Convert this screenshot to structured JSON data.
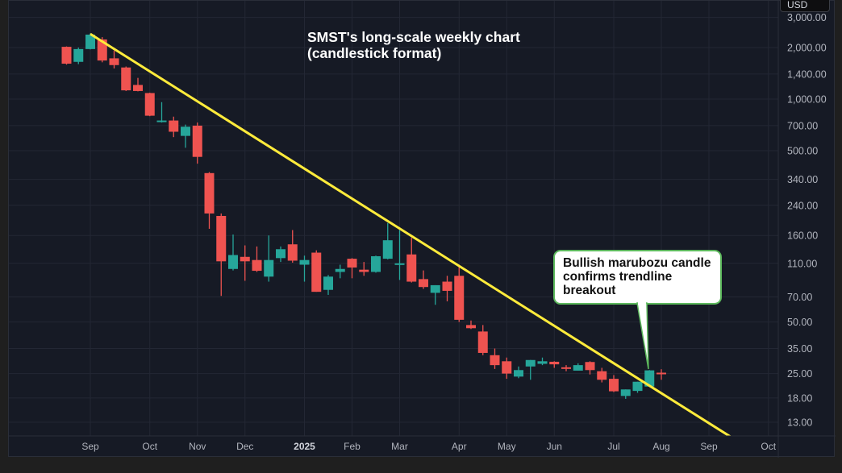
{
  "chart_data": {
    "type": "candlestick",
    "title": "SMST's long-scale weekly chart (candlestick format)",
    "currency": "USD",
    "y_scale": "log",
    "ylim": [
      11,
      2900
    ],
    "y_ticks": [
      "3,000.00",
      "2,000.00",
      "1,400.00",
      "1,000.00",
      "700.00",
      "500.00",
      "340.00",
      "240.00",
      "160.00",
      "110.00",
      "70.00",
      "50.00",
      "35.00",
      "25.00",
      "18.00",
      "13.00"
    ],
    "y_tick_values": [
      3000,
      2000,
      1400,
      1000,
      700,
      500,
      340,
      240,
      160,
      110,
      70,
      50,
      35,
      25,
      18,
      13
    ],
    "x_ticks": [
      {
        "label": "Sep",
        "week": 2
      },
      {
        "label": "Oct",
        "week": 7
      },
      {
        "label": "Nov",
        "week": 11
      },
      {
        "label": "Dec",
        "week": 15
      },
      {
        "label": "2025",
        "week": 20,
        "bold": true
      },
      {
        "label": "Feb",
        "week": 24
      },
      {
        "label": "Mar",
        "week": 28
      },
      {
        "label": "Apr",
        "week": 33
      },
      {
        "label": "May",
        "week": 37
      },
      {
        "label": "Jun",
        "week": 41
      },
      {
        "label": "Jul",
        "week": 46
      },
      {
        "label": "Aug",
        "week": 50
      },
      {
        "label": "Sep",
        "week": 54
      },
      {
        "label": "Oct",
        "week": 59
      }
    ],
    "candles_ohlc": [
      [
        2020,
        2030,
        1590,
        1610
      ],
      [
        1650,
        2000,
        1600,
        1960
      ],
      [
        1960,
        2420,
        1950,
        2380
      ],
      [
        2230,
        2300,
        1640,
        1680
      ],
      [
        1730,
        1920,
        1510,
        1580
      ],
      [
        1530,
        1550,
        1115,
        1125
      ],
      [
        1210,
        1330,
        1110,
        1115
      ],
      [
        1085,
        1090,
        795,
        800
      ],
      [
        735,
        960,
        730,
        750
      ],
      [
        750,
        790,
        600,
        645
      ],
      [
        610,
        710,
        520,
        690
      ],
      [
        700,
        730,
        420,
        460
      ],
      [
        370,
        375,
        175,
        215
      ],
      [
        208,
        215,
        71,
        113
      ],
      [
        102,
        162,
        100,
        123
      ],
      [
        120,
        140,
        87,
        113
      ],
      [
        115,
        138,
        98,
        99.5
      ],
      [
        92,
        160,
        86,
        115
      ],
      [
        118,
        138,
        112,
        133
      ],
      [
        142,
        172,
        111,
        114
      ],
      [
        108,
        122,
        86,
        115
      ],
      [
        127,
        131,
        75,
        75
      ],
      [
        77,
        94,
        72,
        92
      ],
      [
        98,
        108,
        90,
        102
      ],
      [
        117,
        118,
        90,
        104
      ],
      [
        101,
        112,
        93,
        98
      ],
      [
        98,
        122,
        97,
        121
      ],
      [
        117,
        189,
        116,
        150
      ],
      [
        108,
        172,
        88,
        110
      ],
      [
        124,
        155,
        85,
        86
      ],
      [
        89,
        100,
        78,
        80
      ],
      [
        74,
        82,
        63,
        82
      ],
      [
        86,
        93,
        66,
        76
      ],
      [
        93,
        108,
        50,
        51.5
      ],
      [
        48,
        51,
        45.5,
        46
      ],
      [
        44,
        48,
        32,
        33
      ],
      [
        32,
        35,
        26.6,
        28
      ],
      [
        29.5,
        31,
        23.3,
        25
      ],
      [
        24,
        27.5,
        23.5,
        26.2
      ],
      [
        27.5,
        30,
        23,
        30
      ],
      [
        28.5,
        31,
        28,
        29.5
      ],
      [
        29.3,
        29.5,
        27,
        28.3
      ],
      [
        27.2,
        28,
        25.8,
        26.8
      ],
      [
        26,
        28.7,
        26,
        28
      ],
      [
        29.2,
        29.5,
        24.7,
        26.2
      ],
      [
        25.8,
        27,
        22.2,
        23
      ],
      [
        23.3,
        24.5,
        19.5,
        19.7
      ],
      [
        18.5,
        20.2,
        17.8,
        20.2
      ],
      [
        19.8,
        22.4,
        19.3,
        22.4
      ],
      [
        21,
        26.2,
        21,
        26.1
      ],
      [
        25.3,
        26.5,
        23,
        24.8
      ]
    ],
    "trendline": {
      "from": {
        "week": 2,
        "price": 2400
      },
      "to": {
        "week": 56,
        "price": 10.5
      }
    },
    "annotation": {
      "text": "Bullish marubozu candle confirms trendline breakout",
      "week": 49
    },
    "colors": {
      "up": "#26a69a",
      "down": "#ef5350",
      "trendline": "#ffeb3b",
      "grid": "#232734"
    }
  }
}
